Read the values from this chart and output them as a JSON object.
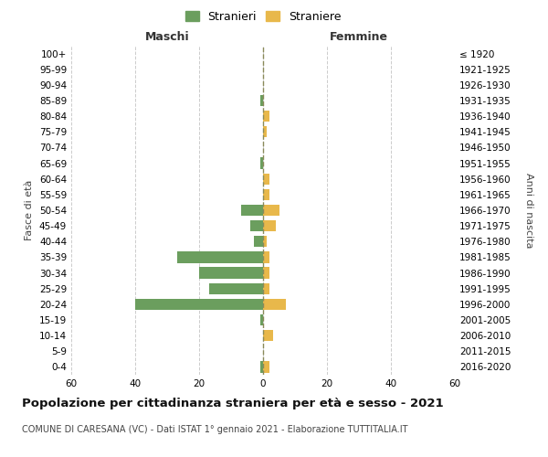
{
  "age_groups_bottom_to_top": [
    "0-4",
    "5-9",
    "10-14",
    "15-19",
    "20-24",
    "25-29",
    "30-34",
    "35-39",
    "40-44",
    "45-49",
    "50-54",
    "55-59",
    "60-64",
    "65-69",
    "70-74",
    "75-79",
    "80-84",
    "85-89",
    "90-94",
    "95-99",
    "100+"
  ],
  "birth_years_bottom_to_top": [
    "2016-2020",
    "2011-2015",
    "2006-2010",
    "2001-2005",
    "1996-2000",
    "1991-1995",
    "1986-1990",
    "1981-1985",
    "1976-1980",
    "1971-1975",
    "1966-1970",
    "1961-1965",
    "1956-1960",
    "1951-1955",
    "1946-1950",
    "1941-1945",
    "1936-1940",
    "1931-1935",
    "1926-1930",
    "1921-1925",
    "≤ 1920"
  ],
  "maschi_stranieri": [
    1,
    0,
    0,
    1,
    40,
    17,
    20,
    27,
    3,
    4,
    7,
    0,
    0,
    1,
    0,
    0,
    0,
    1,
    0,
    0,
    0
  ],
  "femmine_straniere": [
    2,
    0,
    3,
    0,
    7,
    2,
    2,
    2,
    1,
    4,
    5,
    2,
    2,
    0,
    0,
    1,
    2,
    0,
    0,
    0,
    0
  ],
  "color_maschi": "#6b9e5e",
  "color_femmine": "#e8b84b",
  "color_centerline": "#8a8a5a",
  "title": "Popolazione per cittadinanza straniera per età e sesso - 2021",
  "subtitle": "COMUNE DI CARESANA (VC) - Dati ISTAT 1° gennaio 2021 - Elaborazione TUTTITALIA.IT",
  "left_label": "Maschi",
  "right_label": "Femmine",
  "ylabel_left": "Fasce di età",
  "ylabel_right": "Anni di nascita",
  "legend_stranieri": "Stranieri",
  "legend_straniere": "Straniere",
  "xlim": 60,
  "background_color": "#ffffff",
  "grid_color": "#cccccc"
}
